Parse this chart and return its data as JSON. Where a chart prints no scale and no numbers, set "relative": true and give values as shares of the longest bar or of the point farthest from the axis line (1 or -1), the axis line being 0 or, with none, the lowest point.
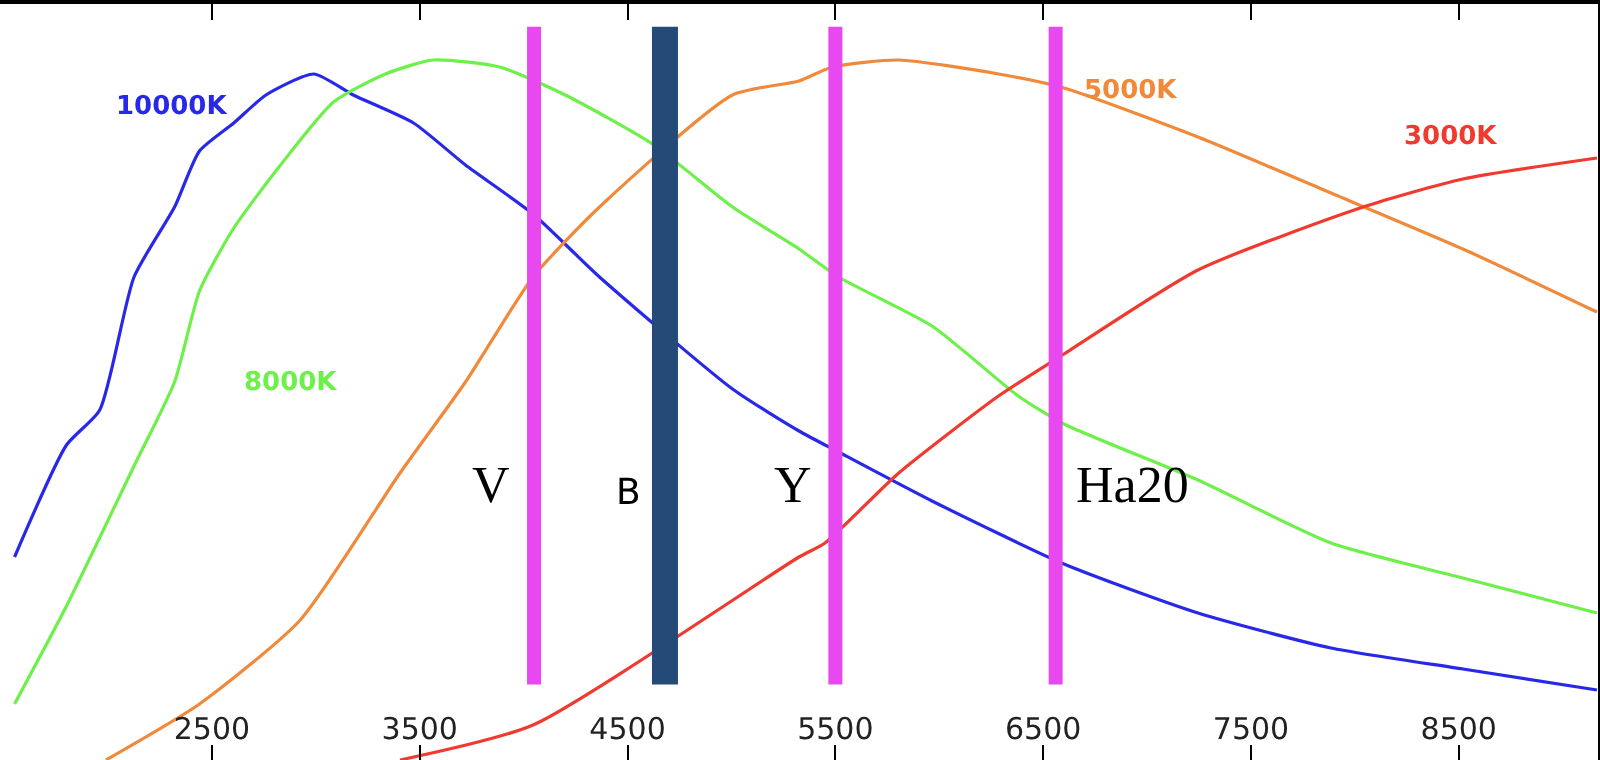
{
  "chart_data": {
    "type": "line",
    "relative": true,
    "legend": false,
    "marker": "none",
    "line_style": "solid",
    "xlim": [
      1480,
      9170
    ],
    "xticks": [
      2500,
      3500,
      4500,
      5500,
      6500,
      7500,
      8500
    ],
    "series": [
      {
        "name": "10000K",
        "color": "#2828e8",
        "x": [
          1550,
          1800,
          1960,
          2125,
          2320,
          2440,
          2605,
          2760,
          2990,
          3180,
          3470,
          3720,
          4045,
          4365,
          5005,
          5325,
          5515,
          5965,
          6600,
          7245,
          7885,
          8520,
          9165
        ],
        "values": [
          0.29,
          0.45,
          0.5,
          0.69,
          0.79,
          0.87,
          0.91,
          0.95,
          0.98,
          0.95,
          0.91,
          0.85,
          0.78,
          0.69,
          0.53,
          0.47,
          0.44,
          0.37,
          0.28,
          0.21,
          0.16,
          0.13,
          0.1
        ]
      },
      {
        "name": "8000K",
        "color": "#6ef04a",
        "x": [
          1550,
          1800,
          2125,
          2320,
          2440,
          2605,
          2830,
          3085,
          3335,
          3565,
          3885,
          4200,
          4620,
          5005,
          5325,
          5515,
          5965,
          6380,
          6600,
          7245,
          7885,
          8520,
          9165
        ],
        "values": [
          0.08,
          0.22,
          0.42,
          0.54,
          0.67,
          0.76,
          0.85,
          0.94,
          0.98,
          1.0,
          0.99,
          0.95,
          0.88,
          0.79,
          0.73,
          0.69,
          0.62,
          0.52,
          0.48,
          0.4,
          0.31,
          0.26,
          0.21
        ]
      },
      {
        "name": "5000K",
        "color": "#f08a3a",
        "x": [
          1990,
          2440,
          2925,
          3405,
          3720,
          4045,
          4365,
          5005,
          5325,
          5485,
          5805,
          6285,
          6600,
          7245,
          7885,
          8520,
          9165
        ],
        "values": [
          0.0,
          0.08,
          0.2,
          0.41,
          0.54,
          0.69,
          0.79,
          0.95,
          0.97,
          0.99,
          1.0,
          0.98,
          0.96,
          0.89,
          0.81,
          0.73,
          0.64
        ]
      },
      {
        "name": "3000K",
        "color": "#f03a30",
        "x": [
          3405,
          4045,
          5325,
          5450,
          5805,
          6285,
          6600,
          7245,
          8040,
          8520,
          9165
        ],
        "values": [
          0.0,
          0.05,
          0.29,
          0.31,
          0.41,
          0.52,
          0.58,
          0.7,
          0.79,
          0.83,
          0.86
        ]
      }
    ],
    "ref_lines": [
      {
        "axis": "x",
        "value": 4050,
        "label": "V",
        "color": "#e848f0"
      },
      {
        "axis": "x",
        "value": 4680,
        "label": "B",
        "color": "#244a78"
      },
      {
        "axis": "x",
        "value": 5500,
        "label": "Y",
        "color": "#e848f0"
      },
      {
        "axis": "x",
        "value": 6560,
        "label": "Ha20",
        "color": "#e848f0"
      }
    ]
  }
}
